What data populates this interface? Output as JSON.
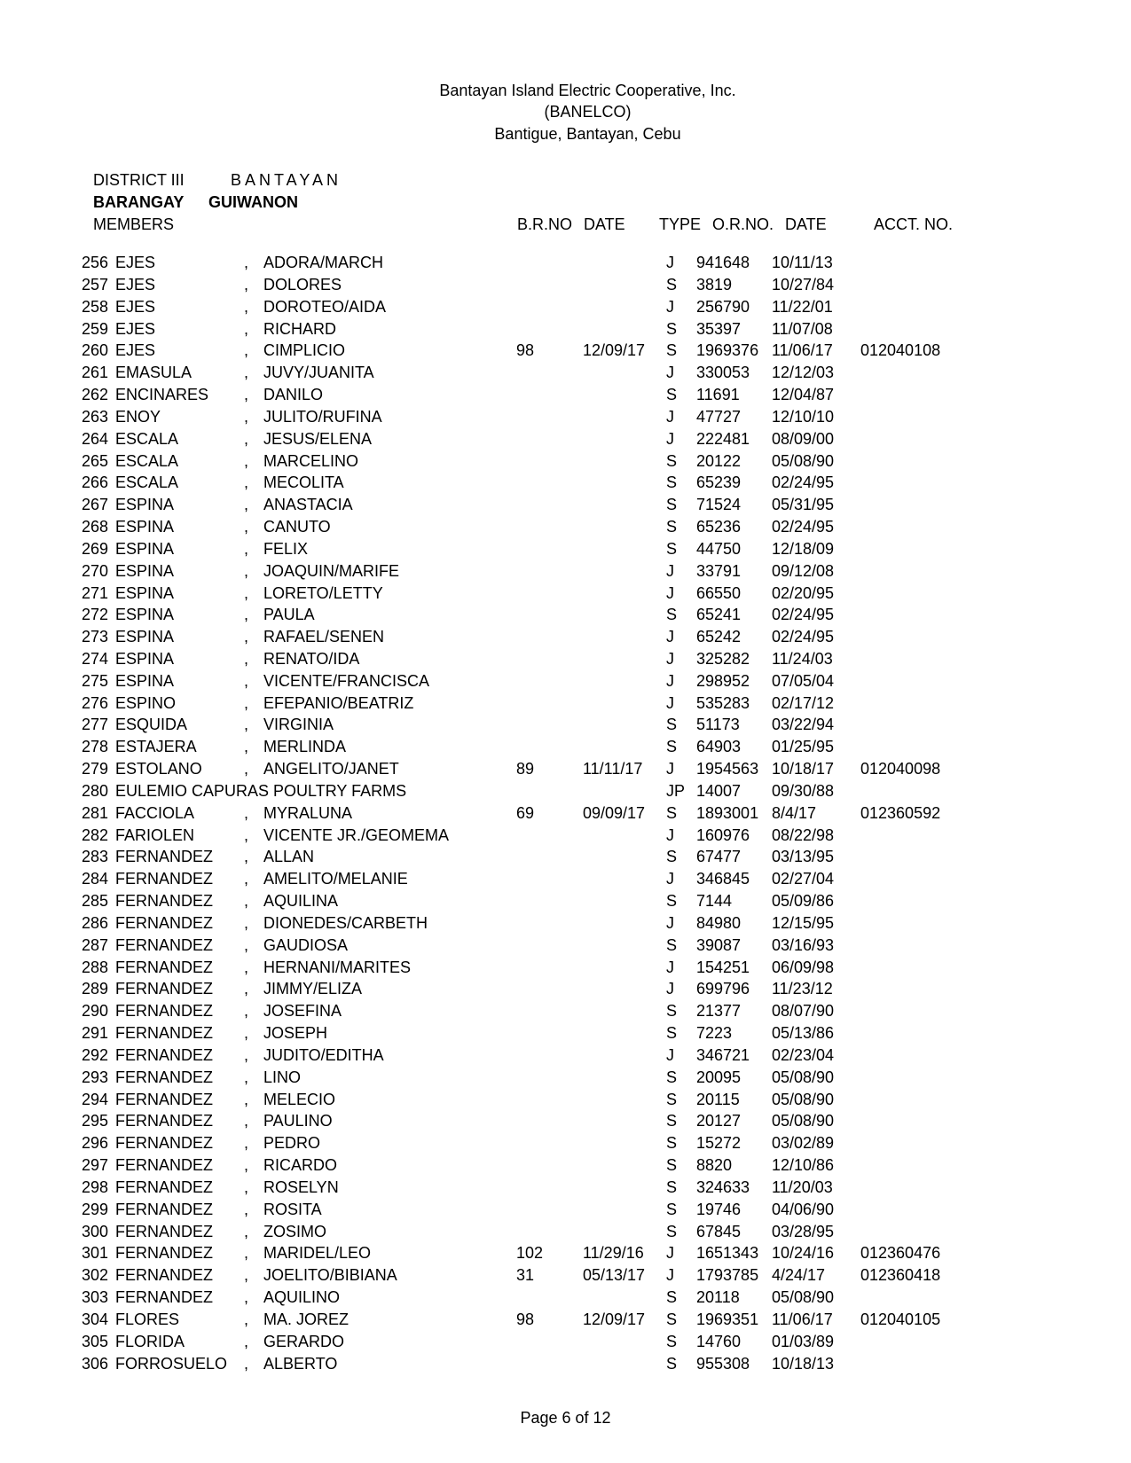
{
  "header": {
    "line1": "Bantayan Island Electric Cooperative, Inc.",
    "line2": "(BANELCO)",
    "line3": "Bantigue, Bantayan, Cebu"
  },
  "block": {
    "district_label": "DISTRICT III",
    "district_value": "BANTAYAN",
    "barangay_label": "BARANGAY",
    "barangay_value": "GUIWANON",
    "members_label": "MEMBERS"
  },
  "cols": {
    "brno": "B.R.NO",
    "date": "DATE",
    "type": "TYPE",
    "orno": "O.R.NO.",
    "odate": "DATE",
    "acct": "ACCT. NO."
  },
  "rows": [
    {
      "n": "256",
      "last": "EJES",
      "c": ",",
      "first": "ADORA/MARCH",
      "br": "",
      "bd": "",
      "t": "J",
      "or": "941648",
      "od": "10/11/13",
      "ac": ""
    },
    {
      "n": "257",
      "last": "EJES",
      "c": ",",
      "first": "DOLORES",
      "br": "",
      "bd": "",
      "t": "S",
      "or": "3819",
      "od": "10/27/84",
      "ac": ""
    },
    {
      "n": "258",
      "last": "EJES",
      "c": ",",
      "first": "DOROTEO/AIDA",
      "br": "",
      "bd": "",
      "t": "J",
      "or": "256790",
      "od": "11/22/01",
      "ac": ""
    },
    {
      "n": "259",
      "last": "EJES",
      "c": ",",
      "first": "RICHARD",
      "br": "",
      "bd": "",
      "t": "S",
      "or": "35397",
      "od": "11/07/08",
      "ac": ""
    },
    {
      "n": "260",
      "last": "EJES",
      "c": ",",
      "first": "CIMPLICIO",
      "br": "98",
      "bd": "12/09/17",
      "t": "S",
      "or": "1969376",
      "od": "11/06/17",
      "ac": "012040108"
    },
    {
      "n": "261",
      "last": "EMASULA",
      "c": ",",
      "first": "JUVY/JUANITA",
      "br": "",
      "bd": "",
      "t": "J",
      "or": "330053",
      "od": "12/12/03",
      "ac": ""
    },
    {
      "n": "262",
      "last": "ENCINARES",
      "c": ",",
      "first": "DANILO",
      "br": "",
      "bd": "",
      "t": "S",
      "or": "11691",
      "od": "12/04/87",
      "ac": ""
    },
    {
      "n": "263",
      "last": "ENOY",
      "c": ",",
      "first": "JULITO/RUFINA",
      "br": "",
      "bd": "",
      "t": "J",
      "or": "47727",
      "od": "12/10/10",
      "ac": ""
    },
    {
      "n": "264",
      "last": "ESCALA",
      "c": ",",
      "first": "JESUS/ELENA",
      "br": "",
      "bd": "",
      "t": "J",
      "or": "222481",
      "od": "08/09/00",
      "ac": ""
    },
    {
      "n": "265",
      "last": "ESCALA",
      "c": ",",
      "first": "MARCELINO",
      "br": "",
      "bd": "",
      "t": "S",
      "or": "20122",
      "od": "05/08/90",
      "ac": ""
    },
    {
      "n": "266",
      "last": "ESCALA",
      "c": ",",
      "first": "MECOLITA",
      "br": "",
      "bd": "",
      "t": "S",
      "or": "65239",
      "od": "02/24/95",
      "ac": ""
    },
    {
      "n": "267",
      "last": "ESPINA",
      "c": ",",
      "first": "ANASTACIA",
      "br": "",
      "bd": "",
      "t": "S",
      "or": "71524",
      "od": "05/31/95",
      "ac": ""
    },
    {
      "n": "268",
      "last": "ESPINA",
      "c": ",",
      "first": "CANUTO",
      "br": "",
      "bd": "",
      "t": "S",
      "or": "65236",
      "od": "02/24/95",
      "ac": ""
    },
    {
      "n": "269",
      "last": "ESPINA",
      "c": ",",
      "first": "FELIX",
      "br": "",
      "bd": "",
      "t": "S",
      "or": "44750",
      "od": "12/18/09",
      "ac": ""
    },
    {
      "n": "270",
      "last": "ESPINA",
      "c": ",",
      "first": "JOAQUIN/MARIFE",
      "br": "",
      "bd": "",
      "t": "J",
      "or": "33791",
      "od": "09/12/08",
      "ac": ""
    },
    {
      "n": "271",
      "last": "ESPINA",
      "c": ",",
      "first": "LORETO/LETTY",
      "br": "",
      "bd": "",
      "t": "J",
      "or": "66550",
      "od": "02/20/95",
      "ac": ""
    },
    {
      "n": "272",
      "last": "ESPINA",
      "c": ",",
      "first": "PAULA",
      "br": "",
      "bd": "",
      "t": "S",
      "or": "65241",
      "od": "02/24/95",
      "ac": ""
    },
    {
      "n": "273",
      "last": "ESPINA",
      "c": ",",
      "first": "RAFAEL/SENEN",
      "br": "",
      "bd": "",
      "t": "J",
      "or": "65242",
      "od": "02/24/95",
      "ac": ""
    },
    {
      "n": "274",
      "last": "ESPINA",
      "c": ",",
      "first": "RENATO/IDA",
      "br": "",
      "bd": "",
      "t": "J",
      "or": "325282",
      "od": "11/24/03",
      "ac": ""
    },
    {
      "n": "275",
      "last": "ESPINA",
      "c": ",",
      "first": "VICENTE/FRANCISCA",
      "br": "",
      "bd": "",
      "t": "J",
      "or": "298952",
      "od": "07/05/04",
      "ac": ""
    },
    {
      "n": "276",
      "last": "ESPINO",
      "c": ",",
      "first": "EFEPANIO/BEATRIZ",
      "br": "",
      "bd": "",
      "t": "J",
      "or": "535283",
      "od": "02/17/12",
      "ac": ""
    },
    {
      "n": "277",
      "last": "ESQUIDA",
      "c": ",",
      "first": "VIRGINIA",
      "br": "",
      "bd": "",
      "t": "S",
      "or": "51173",
      "od": "03/22/94",
      "ac": ""
    },
    {
      "n": "278",
      "last": "ESTAJERA",
      "c": ",",
      "first": "MERLINDA",
      "br": "",
      "bd": "",
      "t": "S",
      "or": "64903",
      "od": "01/25/95",
      "ac": ""
    },
    {
      "n": "279",
      "last": "ESTOLANO",
      "c": ",",
      "first": "ANGELITO/JANET",
      "br": "89",
      "bd": "11/11/17",
      "t": "J",
      "or": "1954563",
      "od": "10/18/17",
      "ac": "012040098"
    },
    {
      "n": "280",
      "last": "EULEMIO CAPURAS POULTRY FARMS",
      "c": "",
      "first": "",
      "br": "",
      "bd": "",
      "t": "JP",
      "or": "14007",
      "od": "09/30/88",
      "ac": "",
      "span": true
    },
    {
      "n": "281",
      "last": "FACCIOLA",
      "c": ",",
      "first": "MYRALUNA",
      "br": "69",
      "bd": "09/09/17",
      "t": "S",
      "or": "1893001",
      "od": "8/4/17",
      "ac": "012360592"
    },
    {
      "n": "282",
      "last": "FARIOLEN",
      "c": ",",
      "first": "VICENTE JR./GEOMEMA",
      "br": "",
      "bd": "",
      "t": "J",
      "or": "160976",
      "od": "08/22/98",
      "ac": ""
    },
    {
      "n": "283",
      "last": "FERNANDEZ",
      "c": ",",
      "first": "ALLAN",
      "br": "",
      "bd": "",
      "t": "S",
      "or": "67477",
      "od": "03/13/95",
      "ac": ""
    },
    {
      "n": "284",
      "last": "FERNANDEZ",
      "c": ",",
      "first": "AMELITO/MELANIE",
      "br": "",
      "bd": "",
      "t": "J",
      "or": "346845",
      "od": "02/27/04",
      "ac": ""
    },
    {
      "n": "285",
      "last": "FERNANDEZ",
      "c": ",",
      "first": "AQUILINA",
      "br": "",
      "bd": "",
      "t": "S",
      "or": "7144",
      "od": "05/09/86",
      "ac": ""
    },
    {
      "n": "286",
      "last": "FERNANDEZ",
      "c": ",",
      "first": "DIONEDES/CARBETH",
      "br": "",
      "bd": "",
      "t": "J",
      "or": "84980",
      "od": "12/15/95",
      "ac": ""
    },
    {
      "n": "287",
      "last": "FERNANDEZ",
      "c": ",",
      "first": "GAUDIOSA",
      "br": "",
      "bd": "",
      "t": "S",
      "or": "39087",
      "od": "03/16/93",
      "ac": ""
    },
    {
      "n": "288",
      "last": "FERNANDEZ",
      "c": ",",
      "first": "HERNANI/MARITES",
      "br": "",
      "bd": "",
      "t": "J",
      "or": "154251",
      "od": "06/09/98",
      "ac": ""
    },
    {
      "n": "289",
      "last": "FERNANDEZ",
      "c": ",",
      "first": "JIMMY/ELIZA",
      "br": "",
      "bd": "",
      "t": "J",
      "or": "699796",
      "od": "11/23/12",
      "ac": ""
    },
    {
      "n": "290",
      "last": "FERNANDEZ",
      "c": ",",
      "first": "JOSEFINA",
      "br": "",
      "bd": "",
      "t": "S",
      "or": "21377",
      "od": "08/07/90",
      "ac": ""
    },
    {
      "n": "291",
      "last": "FERNANDEZ",
      "c": ",",
      "first": "JOSEPH",
      "br": "",
      "bd": "",
      "t": "S",
      "or": "7223",
      "od": "05/13/86",
      "ac": ""
    },
    {
      "n": "292",
      "last": "FERNANDEZ",
      "c": ",",
      "first": "JUDITO/EDITHA",
      "br": "",
      "bd": "",
      "t": "J",
      "or": "346721",
      "od": "02/23/04",
      "ac": ""
    },
    {
      "n": "293",
      "last": "FERNANDEZ",
      "c": ",",
      "first": "LINO",
      "br": "",
      "bd": "",
      "t": "S",
      "or": "20095",
      "od": "05/08/90",
      "ac": ""
    },
    {
      "n": "294",
      "last": "FERNANDEZ",
      "c": ",",
      "first": "MELECIO",
      "br": "",
      "bd": "",
      "t": "S",
      "or": "20115",
      "od": "05/08/90",
      "ac": ""
    },
    {
      "n": "295",
      "last": "FERNANDEZ",
      "c": ",",
      "first": "PAULINO",
      "br": "",
      "bd": "",
      "t": "S",
      "or": "20127",
      "od": "05/08/90",
      "ac": ""
    },
    {
      "n": "296",
      "last": "FERNANDEZ",
      "c": ",",
      "first": "PEDRO",
      "br": "",
      "bd": "",
      "t": "S",
      "or": "15272",
      "od": "03/02/89",
      "ac": ""
    },
    {
      "n": "297",
      "last": "FERNANDEZ",
      "c": ",",
      "first": "RICARDO",
      "br": "",
      "bd": "",
      "t": "S",
      "or": "8820",
      "od": "12/10/86",
      "ac": ""
    },
    {
      "n": "298",
      "last": "FERNANDEZ",
      "c": ",",
      "first": "ROSELYN",
      "br": "",
      "bd": "",
      "t": "S",
      "or": "324633",
      "od": "11/20/03",
      "ac": ""
    },
    {
      "n": "299",
      "last": "FERNANDEZ",
      "c": ",",
      "first": "ROSITA",
      "br": "",
      "bd": "",
      "t": "S",
      "or": "19746",
      "od": "04/06/90",
      "ac": ""
    },
    {
      "n": "300",
      "last": "FERNANDEZ",
      "c": ",",
      "first": "ZOSIMO",
      "br": "",
      "bd": "",
      "t": "S",
      "or": "67845",
      "od": "03/28/95",
      "ac": ""
    },
    {
      "n": "301",
      "last": "FERNANDEZ",
      "c": ",",
      "first": "MARIDEL/LEO",
      "br": "102",
      "bd": "11/29/16",
      "t": "J",
      "or": "1651343",
      "od": "10/24/16",
      "ac": "012360476"
    },
    {
      "n": "302",
      "last": "FERNANDEZ",
      "c": ",",
      "first": "JOELITO/BIBIANA",
      "br": "31",
      "bd": "05/13/17",
      "t": "J",
      "or": "1793785",
      "od": "4/24/17",
      "ac": "012360418"
    },
    {
      "n": "303",
      "last": "FERNANDEZ",
      "c": ",",
      "first": "AQUILINO",
      "br": "",
      "bd": "",
      "t": "S",
      "or": "20118",
      "od": "05/08/90",
      "ac": ""
    },
    {
      "n": "304",
      "last": "FLORES",
      "c": ",",
      "first": "MA. JOREZ",
      "br": "98",
      "bd": "12/09/17",
      "t": "S",
      "or": "1969351",
      "od": "11/06/17",
      "ac": "012040105"
    },
    {
      "n": "305",
      "last": "FLORIDA",
      "c": ",",
      "first": "GERARDO",
      "br": "",
      "bd": "",
      "t": "S",
      "or": "14760",
      "od": "01/03/89",
      "ac": ""
    },
    {
      "n": "306",
      "last": "FORROSUELO",
      "c": ",",
      "first": "ALBERTO",
      "br": "",
      "bd": "",
      "t": "S",
      "or": "955308",
      "od": "10/18/13",
      "ac": ""
    }
  ],
  "footer": "Page 6 of 12"
}
